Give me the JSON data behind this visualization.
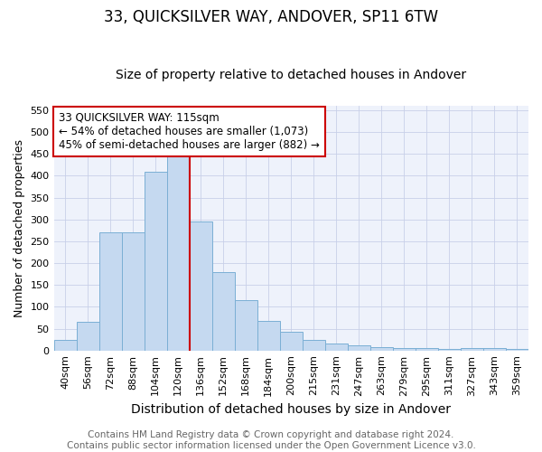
{
  "title1": "33, QUICKSILVER WAY, ANDOVER, SP11 6TW",
  "title2": "Size of property relative to detached houses in Andover",
  "xlabel": "Distribution of detached houses by size in Andover",
  "ylabel": "Number of detached properties",
  "categories": [
    "40sqm",
    "56sqm",
    "72sqm",
    "88sqm",
    "104sqm",
    "120sqm",
    "136sqm",
    "152sqm",
    "168sqm",
    "184sqm",
    "200sqm",
    "215sqm",
    "231sqm",
    "247sqm",
    "263sqm",
    "279sqm",
    "295sqm",
    "311sqm",
    "327sqm",
    "343sqm",
    "359sqm"
  ],
  "values": [
    25,
    65,
    270,
    270,
    410,
    455,
    295,
    180,
    115,
    67,
    43,
    25,
    15,
    12,
    7,
    6,
    5,
    4,
    5,
    5,
    4
  ],
  "bar_color": "#c5d9f0",
  "bar_edge_color": "#7bafd4",
  "vline_x": 5.5,
  "vline_color": "#cc0000",
  "annotation_text": "33 QUICKSILVER WAY: 115sqm\n← 54% of detached houses are smaller (1,073)\n45% of semi-detached houses are larger (882) →",
  "annotation_box_color": "#ffffff",
  "annotation_box_edge": "#cc0000",
  "ylim": [
    0,
    560
  ],
  "yticks": [
    0,
    50,
    100,
    150,
    200,
    250,
    300,
    350,
    400,
    450,
    500,
    550
  ],
  "footer1": "Contains HM Land Registry data © Crown copyright and database right 2024.",
  "footer2": "Contains public sector information licensed under the Open Government Licence v3.0.",
  "bg_color": "#ffffff",
  "plot_bg_color": "#eef2fb",
  "grid_color": "#c8d0e8",
  "title1_fontsize": 12,
  "title2_fontsize": 10,
  "xlabel_fontsize": 10,
  "ylabel_fontsize": 9,
  "tick_fontsize": 8,
  "annotation_fontsize": 8.5,
  "footer_fontsize": 7.5
}
